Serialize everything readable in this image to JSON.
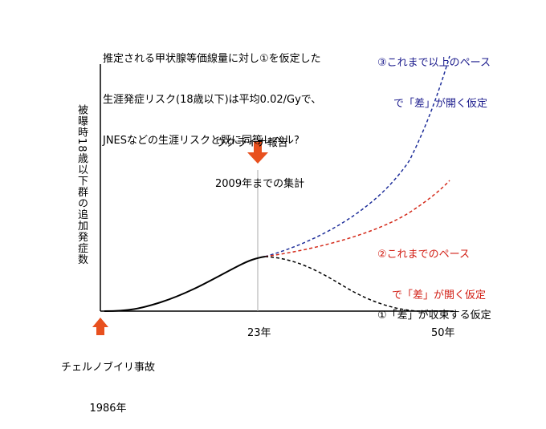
{
  "top_note": {
    "lines": [
      "推定される甲状腺等価線量に対し①を仮定した",
      "生涯発症リスク(18歳以下)は平均0.02/Gyで、",
      "JNESなどの生涯リスクと既に同等レベル?"
    ]
  },
  "ukraine_note": {
    "lines": [
      "ウクライナ報告",
      "2009年までの集計"
    ]
  },
  "scenario_labels": {
    "blue": {
      "lines": [
        "③これまで以上のペース",
        "で「差」が開く仮定"
      ],
      "color": "#1a1a8c"
    },
    "red": {
      "lines": [
        "②これまでのペース",
        "で「差」が開く仮定"
      ],
      "color": "#d21e14"
    },
    "black": {
      "lines": [
        "①「差」が収束する仮定"
      ],
      "color": "#000000"
    }
  },
  "y_axis_label": "被曝時18歳以下群の追加発症数",
  "x_ticks": {
    "t23": "23年",
    "t50": "50年"
  },
  "chernobyl_note": {
    "lines": [
      "チェルノブイリ事故",
      "1986年"
    ]
  },
  "colors": {
    "arrow": "#e8501e",
    "axis": "#000000",
    "divider": "#aaaaaa",
    "blue_curve": "#1f2f9a",
    "red_curve": "#d42a1a",
    "black_curve": "#000000"
  }
}
